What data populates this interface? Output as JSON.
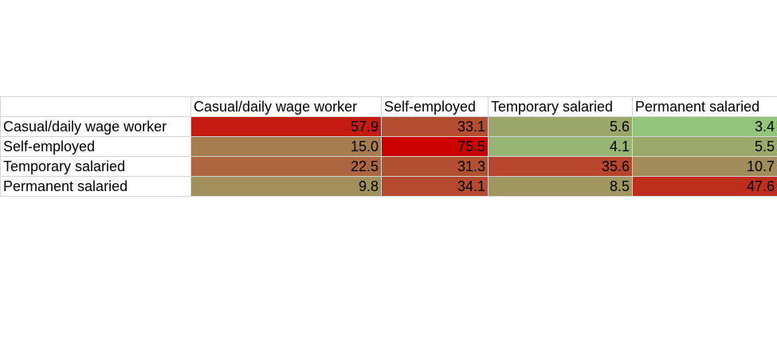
{
  "chart_data": {
    "type": "heatmap",
    "row_labels": [
      "Casual/daily wage worker",
      "Self-employed",
      "Temporary salaried",
      "Permanent salaried"
    ],
    "column_labels": [
      "Casual/daily wage worker",
      "Self-employed",
      "Temporary salaried",
      "Permanent salaried"
    ],
    "values": [
      [
        57.9,
        33.1,
        5.6,
        3.4
      ],
      [
        15.0,
        75.5,
        4.1,
        5.5
      ],
      [
        22.5,
        31.3,
        35.6,
        10.7
      ],
      [
        9.8,
        34.1,
        8.5,
        47.6
      ]
    ],
    "color_scale": {
      "low": "#92c47c",
      "high": "#cc0000"
    }
  }
}
